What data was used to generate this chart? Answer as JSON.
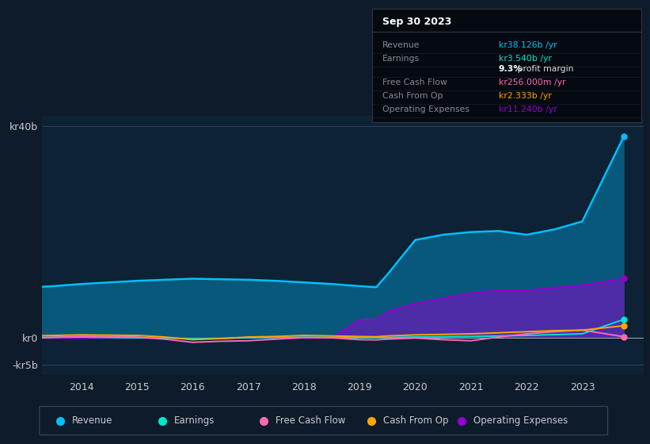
{
  "background_color": "#0d1b2a",
  "plot_bg_color": "#0d2235",
  "years": [
    2013.0,
    2013.5,
    2014.0,
    2014.5,
    2015.0,
    2015.5,
    2016.0,
    2016.5,
    2017.0,
    2017.5,
    2018.0,
    2018.5,
    2019.0,
    2019.3,
    2019.5,
    2020.0,
    2020.5,
    2021.0,
    2021.5,
    2022.0,
    2022.5,
    2023.0,
    2023.75
  ],
  "revenue": [
    9.5,
    9.8,
    10.2,
    10.5,
    10.8,
    11.0,
    11.2,
    11.1,
    11.0,
    10.8,
    10.5,
    10.2,
    9.8,
    9.6,
    12.0,
    18.5,
    19.5,
    20.0,
    20.2,
    19.5,
    20.5,
    22.0,
    38.126
  ],
  "earnings": [
    0.1,
    0.15,
    0.2,
    0.12,
    0.05,
    0.0,
    -0.1,
    -0.05,
    0.05,
    0.1,
    0.15,
    0.12,
    0.1,
    0.08,
    0.1,
    0.2,
    0.25,
    0.3,
    0.4,
    0.5,
    0.65,
    0.8,
    3.54
  ],
  "free_cash_flow": [
    -0.1,
    0.15,
    0.3,
    0.25,
    0.2,
    -0.2,
    -0.8,
    -0.6,
    -0.5,
    -0.2,
    0.1,
    0.05,
    -0.3,
    -0.35,
    -0.2,
    0.0,
    -0.3,
    -0.5,
    0.2,
    0.8,
    1.2,
    1.5,
    0.256
  ],
  "cash_from_op": [
    0.4,
    0.5,
    0.6,
    0.55,
    0.5,
    0.2,
    -0.3,
    -0.1,
    0.2,
    0.3,
    0.5,
    0.4,
    0.3,
    0.25,
    0.4,
    0.6,
    0.7,
    0.8,
    1.0,
    1.2,
    1.4,
    1.5,
    2.333
  ],
  "operating_exp": [
    0.0,
    0.0,
    0.0,
    0.0,
    0.0,
    0.0,
    0.0,
    0.0,
    0.0,
    0.0,
    0.0,
    0.0,
    3.5,
    3.5,
    5.0,
    6.5,
    7.5,
    8.5,
    9.0,
    9.0,
    9.5,
    10.0,
    11.24
  ],
  "colors": {
    "revenue": "#00bfff",
    "earnings": "#00e5cc",
    "free_cash_flow": "#ff69b4",
    "cash_from_op": "#ffa500",
    "operating_exp": "#9400d3"
  },
  "ytick_labels": [
    "-kr5b",
    "kr0",
    "kr40b"
  ],
  "ytick_vals": [
    -5,
    0,
    40
  ],
  "xtick_years": [
    2014,
    2015,
    2016,
    2017,
    2018,
    2019,
    2020,
    2021,
    2022,
    2023
  ],
  "ylim": [
    -7,
    42
  ],
  "xlim": [
    2013.3,
    2024.1
  ],
  "info_title": "Sep 30 2023",
  "info_rows": [
    {
      "label": "Revenue",
      "value": "kr38.126b /yr",
      "color": "#00bfff",
      "bold_prefix": null
    },
    {
      "label": "Earnings",
      "value": "kr3.540b /yr",
      "color": "#00e5cc",
      "bold_prefix": null
    },
    {
      "label": "",
      "value": "profit margin",
      "color": "#dddddd",
      "bold_prefix": "9.3%"
    },
    {
      "label": "Free Cash Flow",
      "value": "kr256.000m /yr",
      "color": "#ff69b4",
      "bold_prefix": null
    },
    {
      "label": "Cash From Op",
      "value": "kr2.333b /yr",
      "color": "#ffa500",
      "bold_prefix": null
    },
    {
      "label": "Operating Expenses",
      "value": "kr11.240b /yr",
      "color": "#9400d3",
      "bold_prefix": null
    }
  ],
  "legend_items": [
    {
      "label": "Revenue",
      "color": "#00bfff"
    },
    {
      "label": "Earnings",
      "color": "#00e5cc"
    },
    {
      "label": "Free Cash Flow",
      "color": "#ff69b4"
    },
    {
      "label": "Cash From Op",
      "color": "#ffa500"
    },
    {
      "label": "Operating Expenses",
      "color": "#9400d3"
    }
  ]
}
